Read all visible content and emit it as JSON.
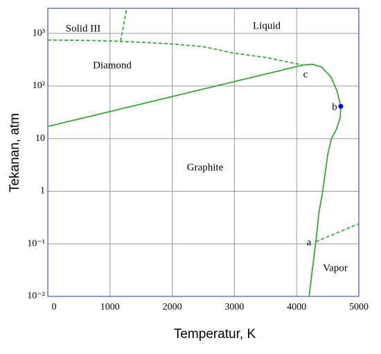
{
  "chart_data": {
    "type": "line",
    "x_label": "Temperatur, K",
    "y_label": "Tekanan, atm",
    "xlim": [
      0,
      5000
    ],
    "xticks": [
      0,
      1000,
      2000,
      3000,
      4000,
      5000
    ],
    "ylim": [
      0.01,
      3000
    ],
    "yscale": "log",
    "yticks": [
      {
        "value": 0.01,
        "label": "10⁻²"
      },
      {
        "value": 0.1,
        "label": "10⁻¹"
      },
      1,
      10,
      {
        "value": 100,
        "label": "10²"
      },
      {
        "value": 1000,
        "label": "10³"
      }
    ],
    "grid": true,
    "series": [
      {
        "color": "#3aa635",
        "style": "solid",
        "x": [
          0,
          4100
        ],
        "values": [
          17,
          250
        ]
      },
      {
        "color": "#3aa635",
        "style": "dashed",
        "x": [
          0,
          500,
          1000,
          1500,
          2000,
          2500,
          3000,
          3500,
          4100
        ],
        "values": [
          750,
          740,
          720,
          680,
          630,
          560,
          420,
          350,
          250
        ]
      },
      {
        "color": "#3aa635",
        "style": "dashed",
        "x": [
          1170,
          1270
        ],
        "values": [
          720,
          3000
        ]
      },
      {
        "color": "#3aa635",
        "style": "solid",
        "x": [
          4100,
          4250,
          4400,
          4550,
          4650,
          4710,
          4700,
          4640,
          4560,
          4500,
          4420,
          4360,
          4310,
          4250,
          4200
        ],
        "values": [
          250,
          260,
          230,
          150,
          80,
          41,
          25,
          15,
          10,
          5,
          1,
          0.4,
          0.11,
          0.03,
          0.01
        ]
      },
      {
        "color": "#3aa635",
        "style": "dashed",
        "x": [
          4310,
          5000
        ],
        "values": [
          0.11,
          0.24
        ]
      },
      {
        "color": "#0000ff",
        "style": "marker",
        "x": [
          4710
        ],
        "values": [
          41
        ]
      }
    ],
    "annotations": [
      "Solid III",
      "Liquid",
      "Diamond",
      "Graphite",
      "Vapor",
      "a",
      "b",
      "c"
    ]
  }
}
